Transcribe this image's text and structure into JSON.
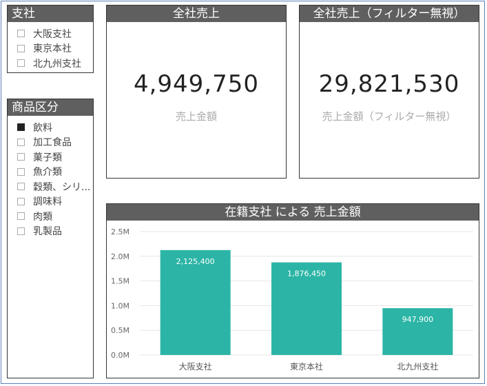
{
  "slicer_branch": {
    "title": "支社",
    "items": [
      {
        "label": "大阪支社",
        "checked": false
      },
      {
        "label": "東京本社",
        "checked": false
      },
      {
        "label": "北九州支社",
        "checked": false
      }
    ]
  },
  "slicer_category": {
    "title": "商品区分",
    "items": [
      {
        "label": "飲料",
        "checked": true
      },
      {
        "label": "加工食品",
        "checked": false
      },
      {
        "label": "菓子類",
        "checked": false
      },
      {
        "label": "魚介類",
        "checked": false
      },
      {
        "label": "穀類、シリ...",
        "checked": false
      },
      {
        "label": "調味料",
        "checked": false
      },
      {
        "label": "肉類",
        "checked": false
      },
      {
        "label": "乳製品",
        "checked": false
      }
    ]
  },
  "card_total": {
    "title": "全社売上",
    "value": "4,949,750",
    "label": "売上金額"
  },
  "card_total_unfiltered": {
    "title": "全社売上（フィルター無視）",
    "value": "29,821,530",
    "label": "売上金額（フィルター無視）"
  },
  "colors": {
    "header": "#5f5f5f",
    "bar": "#2cb5a6",
    "checked": "#222222"
  },
  "chart_data": {
    "type": "bar",
    "title": "在籍支社 による 売上金額",
    "categories": [
      "大阪支社",
      "東京本社",
      "北九州支社"
    ],
    "values": [
      2125400,
      1876450,
      947900
    ],
    "data_labels": [
      "2,125,400",
      "1,876,450",
      "947,900"
    ],
    "yticks": [
      0,
      500000,
      1000000,
      1500000,
      2000000,
      2500000
    ],
    "ytick_labels": [
      "0.0M",
      "0.5M",
      "1.0M",
      "1.5M",
      "2.0M",
      "2.5M"
    ],
    "ylim": [
      0,
      2500000
    ],
    "grid": true
  }
}
